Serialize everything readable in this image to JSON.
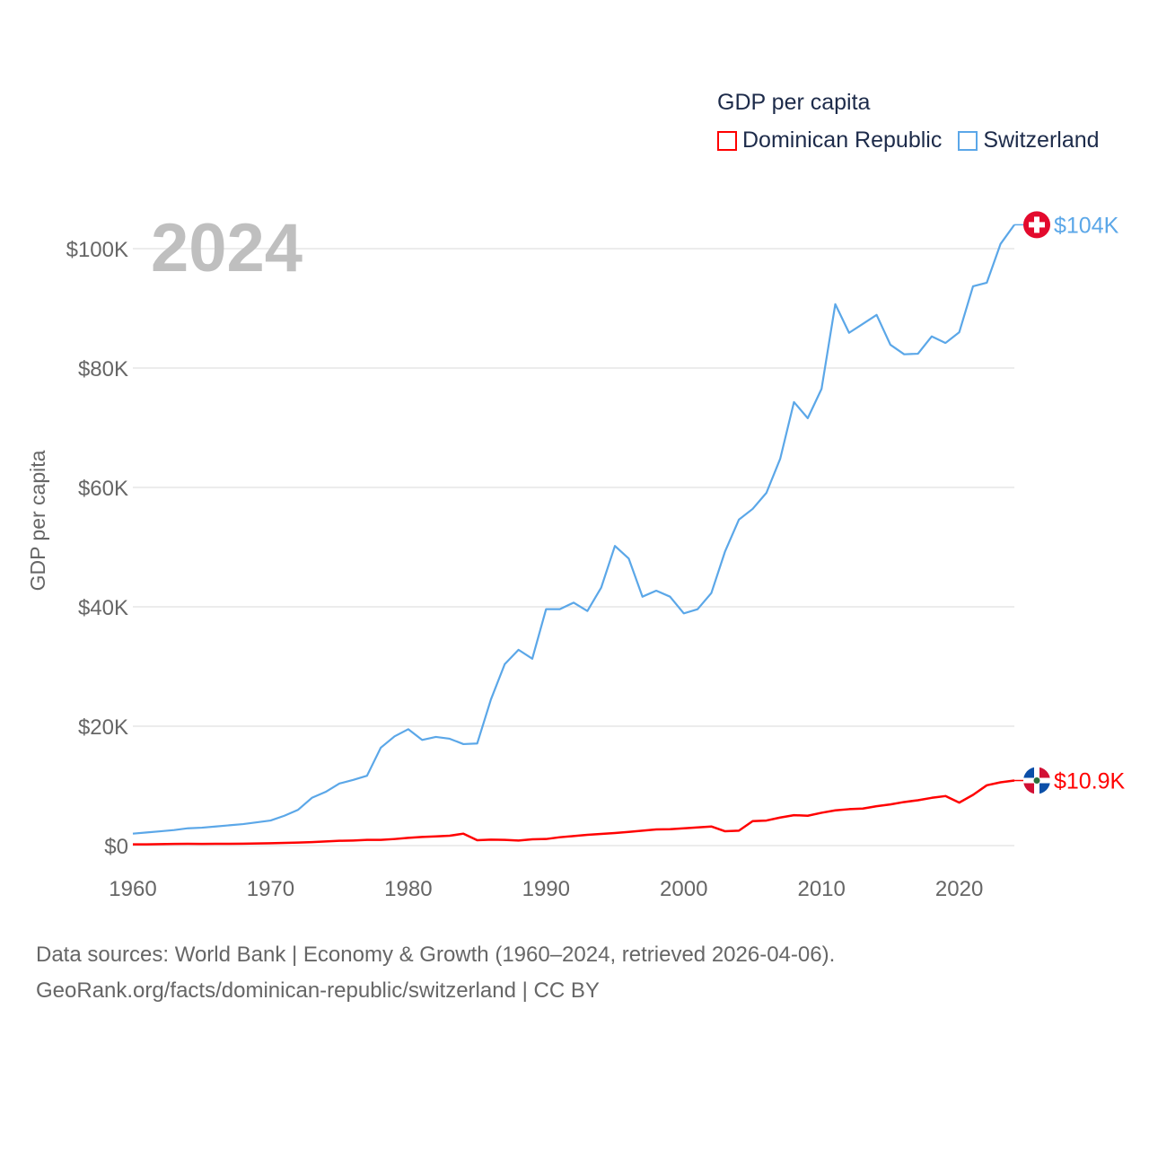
{
  "chart_data": {
    "type": "line",
    "title": "GDP per capita",
    "ylabel": "GDP per capita",
    "xlabel": "",
    "year_label": "2024",
    "xlim": [
      1960,
      2024
    ],
    "ylim": [
      0,
      110
    ],
    "unit": "thousand USD",
    "grid": true,
    "legend_position": "top-right",
    "x_ticks": [
      1960,
      1970,
      1980,
      1990,
      2000,
      2010,
      2020
    ],
    "x_tick_labels": [
      "1960",
      "1970",
      "1980",
      "1990",
      "2000",
      "2010",
      "2020"
    ],
    "y_ticks": [
      0,
      20,
      40,
      60,
      80,
      100
    ],
    "y_tick_labels": [
      "$0",
      "$20K",
      "$40K",
      "$60K",
      "$80K",
      "$100K"
    ],
    "series": [
      {
        "name": "Dominican Republic",
        "color": "#ff0000",
        "end_label": "$10.9K",
        "flag": "dominican-republic-flag-icon",
        "start_year": 1960,
        "values": [
          0.2,
          0.2,
          0.25,
          0.28,
          0.3,
          0.28,
          0.3,
          0.3,
          0.32,
          0.35,
          0.4,
          0.45,
          0.5,
          0.58,
          0.7,
          0.8,
          0.85,
          0.95,
          0.95,
          1.1,
          1.3,
          1.45,
          1.55,
          1.65,
          2.0,
          0.9,
          1.0,
          0.95,
          0.85,
          1.05,
          1.1,
          1.4,
          1.6,
          1.8,
          1.95,
          2.1,
          2.3,
          2.5,
          2.7,
          2.75,
          2.9,
          3.05,
          3.2,
          2.4,
          2.5,
          4.1,
          4.2,
          4.7,
          5.1,
          5.0,
          5.5,
          5.9,
          6.1,
          6.2,
          6.6,
          6.9,
          7.3,
          7.6,
          8.0,
          8.3,
          7.2,
          8.5,
          10.1,
          10.6,
          10.9
        ]
      },
      {
        "name": "Switzerland",
        "color": "#5ba7e8",
        "end_label": "$104K",
        "flag": "switzerland-flag-icon",
        "start_year": 1960,
        "values": [
          2.0,
          2.2,
          2.4,
          2.6,
          2.9,
          3.0,
          3.2,
          3.4,
          3.6,
          3.9,
          4.2,
          5.0,
          6.0,
          8.0,
          9.0,
          10.4,
          11.0,
          11.7,
          16.4,
          18.3,
          19.5,
          17.7,
          18.2,
          17.9,
          17.0,
          17.1,
          24.5,
          30.4,
          32.8,
          31.3,
          39.6,
          39.6,
          40.7,
          39.3,
          43.2,
          50.2,
          48.1,
          41.7,
          42.7,
          41.7,
          38.9,
          39.6,
          42.3,
          49.3,
          54.6,
          56.4,
          59.1,
          64.8,
          74.3,
          71.6,
          76.5,
          90.7,
          85.9,
          87.4,
          88.9,
          83.9,
          82.3,
          82.4,
          85.3,
          84.2,
          86.0,
          93.7,
          94.3,
          100.8,
          104.0
        ]
      }
    ]
  },
  "footer": {
    "line1": "Data sources: World Bank | Economy & Growth (1960–2024, retrieved 2026-04-06).",
    "line2": "GeoRank.org/facts/dominican-republic/switzerland | CC BY"
  }
}
